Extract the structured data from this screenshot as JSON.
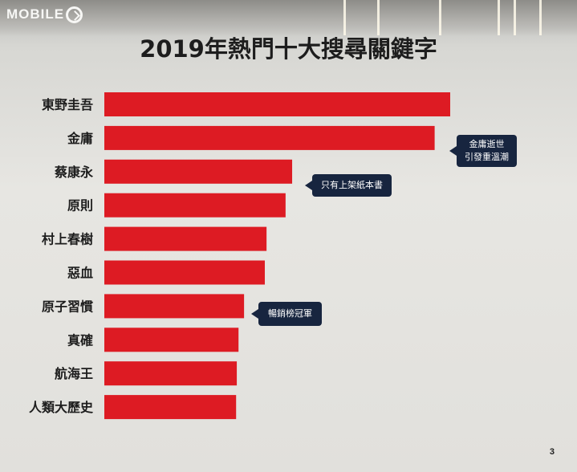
{
  "logo": {
    "text": "MOBILE"
  },
  "page_number": "3",
  "colors": {
    "bar": "#dd1b23",
    "callout_bg": "#17253f",
    "background": "#e4e3df"
  },
  "callouts": {
    "jinyong": [
      "金庸逝世",
      "引發重溫潮"
    ],
    "caiKangyong": "只有上架紙本書",
    "atomicHabits": "暢銷榜冠軍"
  },
  "chart_data": {
    "type": "bar",
    "orientation": "horizontal",
    "title": "2019年熱門十大搜尋關鍵字",
    "categories": [
      "東野圭吾",
      "金庸",
      "蔡康永",
      "原則",
      "村上春樹",
      "惡血",
      "原子習慣",
      "真確",
      "航海王",
      "人類大歷史"
    ],
    "values": [
      100,
      95.5,
      54.3,
      52.4,
      46.9,
      46.4,
      40.4,
      38.8,
      38.3,
      38.1
    ],
    "xlim": [
      0,
      100
    ],
    "xlabel": "",
    "ylabel": "",
    "grid": false,
    "legend": "none"
  }
}
